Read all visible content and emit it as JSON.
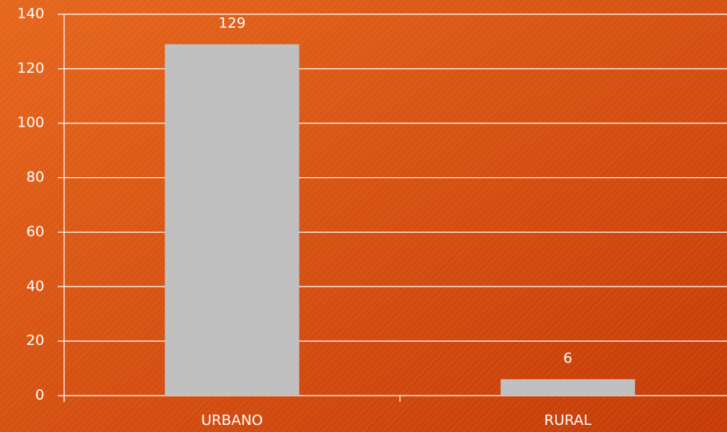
{
  "chart_data": {
    "type": "bar",
    "categories": [
      "URBANO",
      "RURAL"
    ],
    "values": [
      129,
      6
    ],
    "color": "#c0c0c0",
    "ylim": [
      0,
      140
    ],
    "yticks": [
      0,
      20,
      40,
      60,
      80,
      100,
      120,
      140
    ],
    "grid": true
  }
}
